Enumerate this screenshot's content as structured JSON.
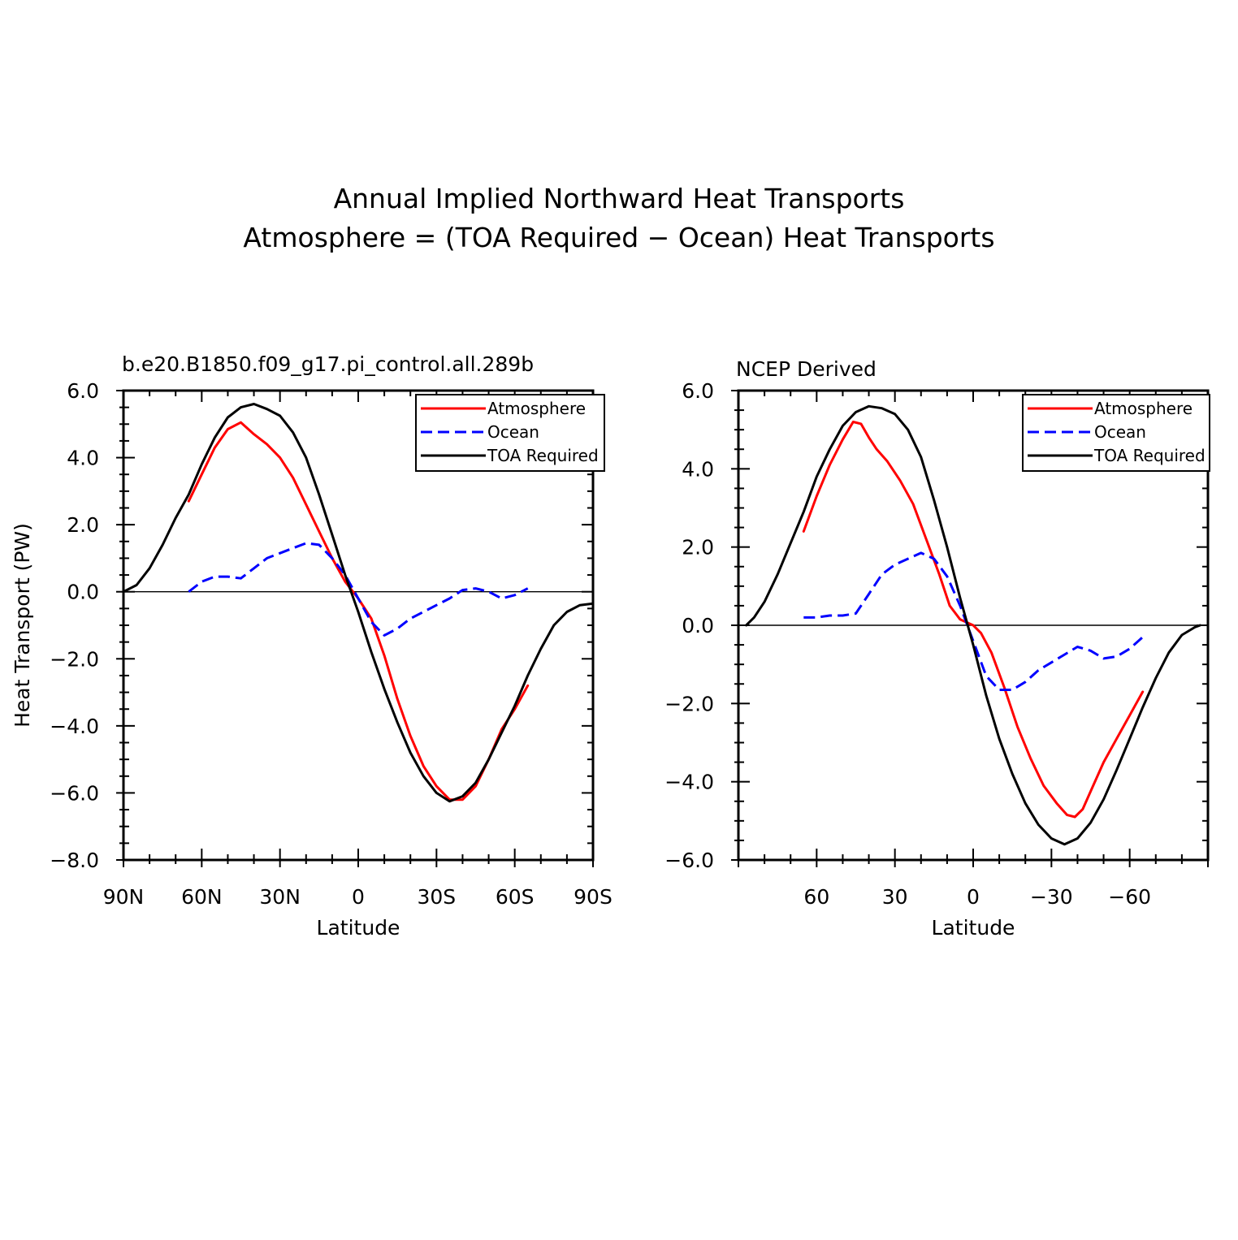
{
  "figure": {
    "title_line1": "Annual Implied Northward Heat Transports",
    "title_line2": "Atmosphere = (TOA Required − Ocean) Heat Transports"
  },
  "colors": {
    "atmosphere": "#ff0000",
    "ocean": "#0000ff",
    "toa": "#000000"
  },
  "chart_data": [
    {
      "type": "line",
      "title": "b.e20.B1850.f09_g17.pi_control.all.289b",
      "xlabel": "Latitude",
      "ylabel": "Heat Transport (PW)",
      "xlim": [
        90,
        -90
      ],
      "ylim": [
        -8,
        6
      ],
      "x_ticks": [
        90,
        60,
        30,
        0,
        -30,
        -60,
        -90
      ],
      "x_tick_labels": [
        "90N",
        "60N",
        "30N",
        "0",
        "30S",
        "60S",
        "90S"
      ],
      "y_ticks": [
        6,
        4,
        2,
        0,
        -2,
        -4,
        -6,
        -8
      ],
      "y_tick_labels": [
        "6.0",
        "4.0",
        "2.0",
        "0.0",
        "−2.0",
        "−4.0",
        "−6.0",
        "−8.0"
      ],
      "legend": {
        "position": "top-right",
        "entries": [
          "Atmosphere",
          "Ocean",
          "TOA Required"
        ]
      },
      "series": [
        {
          "name": "Atmosphere",
          "style": "solid",
          "color": "#ff0000",
          "points": [
            [
              65,
              2.7
            ],
            [
              60,
              3.5
            ],
            [
              55,
              4.3
            ],
            [
              50,
              4.85
            ],
            [
              45,
              5.05
            ],
            [
              40,
              4.7
            ],
            [
              35,
              4.4
            ],
            [
              30,
              4.0
            ],
            [
              25,
              3.4
            ],
            [
              20,
              2.6
            ],
            [
              15,
              1.8
            ],
            [
              10,
              1.0
            ],
            [
              5,
              0.3
            ],
            [
              0,
              -0.2
            ],
            [
              -5,
              -0.8
            ],
            [
              -10,
              -1.9
            ],
            [
              -15,
              -3.2
            ],
            [
              -20,
              -4.3
            ],
            [
              -25,
              -5.2
            ],
            [
              -30,
              -5.8
            ],
            [
              -35,
              -6.2
            ],
            [
              -40,
              -6.2
            ],
            [
              -45,
              -5.8
            ],
            [
              -50,
              -5.0
            ],
            [
              -55,
              -4.1
            ],
            [
              -60,
              -3.5
            ],
            [
              -65,
              -2.8
            ]
          ]
        },
        {
          "name": "Ocean",
          "style": "dashed",
          "color": "#0000ff",
          "points": [
            [
              65,
              0.0
            ],
            [
              60,
              0.3
            ],
            [
              55,
              0.45
            ],
            [
              50,
              0.45
            ],
            [
              45,
              0.4
            ],
            [
              40,
              0.7
            ],
            [
              35,
              1.0
            ],
            [
              30,
              1.15
            ],
            [
              25,
              1.3
            ],
            [
              20,
              1.45
            ],
            [
              15,
              1.4
            ],
            [
              10,
              1.0
            ],
            [
              5,
              0.5
            ],
            [
              0,
              -0.2
            ],
            [
              -5,
              -0.9
            ],
            [
              -10,
              -1.3
            ],
            [
              -15,
              -1.1
            ],
            [
              -20,
              -0.8
            ],
            [
              -25,
              -0.6
            ],
            [
              -30,
              -0.4
            ],
            [
              -35,
              -0.2
            ],
            [
              -40,
              0.05
            ],
            [
              -45,
              0.1
            ],
            [
              -50,
              0.0
            ],
            [
              -55,
              -0.2
            ],
            [
              -60,
              -0.1
            ],
            [
              -65,
              0.1
            ]
          ]
        },
        {
          "name": "TOA Required",
          "style": "solid",
          "color": "#000000",
          "points": [
            [
              90,
              0.0
            ],
            [
              85,
              0.2
            ],
            [
              80,
              0.7
            ],
            [
              75,
              1.4
            ],
            [
              70,
              2.2
            ],
            [
              65,
              2.9
            ],
            [
              60,
              3.8
            ],
            [
              55,
              4.6
            ],
            [
              50,
              5.2
            ],
            [
              45,
              5.5
            ],
            [
              40,
              5.6
            ],
            [
              35,
              5.45
            ],
            [
              30,
              5.25
            ],
            [
              25,
              4.75
            ],
            [
              20,
              4.0
            ],
            [
              15,
              2.9
            ],
            [
              10,
              1.7
            ],
            [
              5,
              0.5
            ],
            [
              0,
              -0.6
            ],
            [
              -5,
              -1.8
            ],
            [
              -10,
              -2.9
            ],
            [
              -15,
              -3.9
            ],
            [
              -20,
              -4.8
            ],
            [
              -25,
              -5.5
            ],
            [
              -30,
              -6.0
            ],
            [
              -35,
              -6.25
            ],
            [
              -40,
              -6.1
            ],
            [
              -45,
              -5.7
            ],
            [
              -50,
              -5.0
            ],
            [
              -55,
              -4.2
            ],
            [
              -60,
              -3.4
            ],
            [
              -65,
              -2.5
            ],
            [
              -70,
              -1.7
            ],
            [
              -75,
              -1.0
            ],
            [
              -80,
              -0.6
            ],
            [
              -85,
              -0.4
            ],
            [
              -90,
              -0.35
            ]
          ]
        }
      ]
    },
    {
      "type": "line",
      "title": "NCEP Derived",
      "xlabel": "Latitude",
      "ylabel": "",
      "xlim": [
        90,
        -90
      ],
      "ylim": [
        -6,
        6
      ],
      "x_ticks": [
        60,
        30,
        0,
        -30,
        -60
      ],
      "x_tick_labels": [
        "60",
        "30",
        "0",
        "−30",
        "−60"
      ],
      "y_ticks": [
        6,
        4,
        2,
        0,
        -2,
        -4,
        -6
      ],
      "y_tick_labels": [
        "6.0",
        "4.0",
        "2.0",
        "0.0",
        "−2.0",
        "−4.0",
        "−6.0"
      ],
      "legend": {
        "position": "top-right",
        "entries": [
          "Atmosphere",
          "Ocean",
          "TOA Required"
        ]
      },
      "series": [
        {
          "name": "Atmosphere",
          "style": "solid",
          "color": "#ff0000",
          "points": [
            [
              65,
              2.4
            ],
            [
              60,
              3.3
            ],
            [
              55,
              4.1
            ],
            [
              50,
              4.75
            ],
            [
              46,
              5.2
            ],
            [
              43,
              5.15
            ],
            [
              40,
              4.8
            ],
            [
              37,
              4.5
            ],
            [
              33,
              4.2
            ],
            [
              28,
              3.7
            ],
            [
              23,
              3.1
            ],
            [
              18,
              2.2
            ],
            [
              13,
              1.3
            ],
            [
              9,
              0.5
            ],
            [
              5,
              0.15
            ],
            [
              0,
              0.0
            ],
            [
              -3,
              -0.2
            ],
            [
              -7,
              -0.7
            ],
            [
              -12,
              -1.6
            ],
            [
              -17,
              -2.6
            ],
            [
              -22,
              -3.4
            ],
            [
              -27,
              -4.1
            ],
            [
              -32,
              -4.55
            ],
            [
              -36,
              -4.85
            ],
            [
              -39,
              -4.9
            ],
            [
              -42,
              -4.7
            ],
            [
              -46,
              -4.1
            ],
            [
              -50,
              -3.5
            ],
            [
              -55,
              -2.9
            ],
            [
              -60,
              -2.3
            ],
            [
              -65,
              -1.7
            ]
          ]
        },
        {
          "name": "Ocean",
          "style": "dashed",
          "color": "#0000ff",
          "points": [
            [
              65,
              0.2
            ],
            [
              60,
              0.2
            ],
            [
              55,
              0.25
            ],
            [
              50,
              0.25
            ],
            [
              45,
              0.3
            ],
            [
              40,
              0.8
            ],
            [
              35,
              1.3
            ],
            [
              30,
              1.55
            ],
            [
              25,
              1.7
            ],
            [
              20,
              1.85
            ],
            [
              15,
              1.7
            ],
            [
              10,
              1.25
            ],
            [
              5,
              0.5
            ],
            [
              0,
              -0.4
            ],
            [
              -5,
              -1.3
            ],
            [
              -10,
              -1.65
            ],
            [
              -15,
              -1.65
            ],
            [
              -20,
              -1.45
            ],
            [
              -25,
              -1.15
            ],
            [
              -30,
              -0.95
            ],
            [
              -35,
              -0.75
            ],
            [
              -40,
              -0.55
            ],
            [
              -45,
              -0.65
            ],
            [
              -50,
              -0.85
            ],
            [
              -55,
              -0.8
            ],
            [
              -60,
              -0.6
            ],
            [
              -65,
              -0.3
            ]
          ]
        },
        {
          "name": "TOA Required",
          "style": "solid",
          "color": "#000000",
          "points": [
            [
              87,
              0.0
            ],
            [
              84,
              0.2
            ],
            [
              80,
              0.6
            ],
            [
              75,
              1.3
            ],
            [
              70,
              2.1
            ],
            [
              65,
              2.9
            ],
            [
              60,
              3.8
            ],
            [
              55,
              4.5
            ],
            [
              50,
              5.1
            ],
            [
              45,
              5.45
            ],
            [
              40,
              5.6
            ],
            [
              35,
              5.55
            ],
            [
              30,
              5.4
            ],
            [
              25,
              5.0
            ],
            [
              20,
              4.3
            ],
            [
              15,
              3.2
            ],
            [
              10,
              2.0
            ],
            [
              5,
              0.7
            ],
            [
              0,
              -0.5
            ],
            [
              -5,
              -1.8
            ],
            [
              -10,
              -2.9
            ],
            [
              -15,
              -3.8
            ],
            [
              -20,
              -4.55
            ],
            [
              -25,
              -5.1
            ],
            [
              -30,
              -5.45
            ],
            [
              -35,
              -5.6
            ],
            [
              -40,
              -5.45
            ],
            [
              -45,
              -5.05
            ],
            [
              -50,
              -4.45
            ],
            [
              -55,
              -3.7
            ],
            [
              -60,
              -2.9
            ],
            [
              -65,
              -2.1
            ],
            [
              -70,
              -1.35
            ],
            [
              -75,
              -0.7
            ],
            [
              -80,
              -0.25
            ],
            [
              -85,
              -0.05
            ],
            [
              -87,
              0.0
            ]
          ]
        }
      ]
    }
  ]
}
